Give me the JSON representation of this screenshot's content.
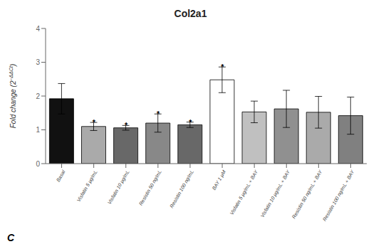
{
  "chart_data": {
    "type": "bar",
    "title": "Col2a1",
    "y_label": "Fold change (2−ΔΔCt)",
    "categories": [
      "Basal",
      "Visfatin 5 μg/mL",
      "Visfatin 10 μg/mL",
      "Resistin 50 ng/mL",
      "Resistin 100 ng/mL",
      "BAY 1 μM",
      "Visfatin 5 μg/mL + BAY",
      "Visfatin 10 μg/mL + BAY",
      "Resistin 50 ng/mL + BAY",
      "Resistin 100 ng/mL + BAY"
    ],
    "values": [
      1.92,
      1.1,
      1.06,
      1.2,
      1.15,
      2.48,
      1.53,
      1.62,
      1.52,
      1.42
    ],
    "errors": [
      0.45,
      0.12,
      0.07,
      0.27,
      0.08,
      0.38,
      0.32,
      0.55,
      0.47,
      0.55
    ],
    "colors": [
      "#111111",
      "#aaaaaa",
      "#686868",
      "#888888",
      "#686868",
      "#ffffff",
      "#c0c0c0",
      "#909090",
      "#aaaaaa",
      "#808080"
    ],
    "annotations": [
      {
        "category": "Visfatin 5 μg/mL",
        "text": "*"
      },
      {
        "category": "Visfatin 10 μg/mL",
        "text": "*"
      },
      {
        "category": "Resistin 50 ng/mL",
        "text": "*"
      },
      {
        "category": "Resistin 100 ng/mL",
        "text": "*"
      },
      {
        "category": "BAY 1 μM",
        "text": "*"
      }
    ],
    "panel_label": "C",
    "ylim": [
      0,
      4
    ],
    "yticks": [
      0,
      1,
      2,
      3,
      4
    ],
    "grid": false
  }
}
